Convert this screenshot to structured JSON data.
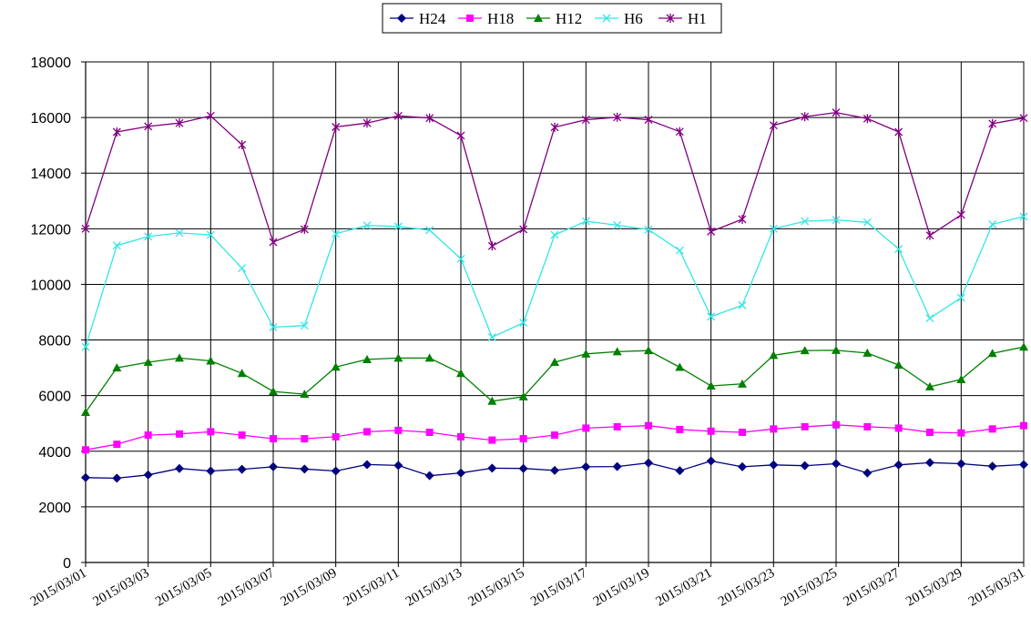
{
  "chart_data": {
    "type": "line",
    "title": "",
    "xlabel": "",
    "ylabel": "",
    "ylim": [
      0,
      18000
    ],
    "yticks": [
      0,
      2000,
      4000,
      6000,
      8000,
      10000,
      12000,
      14000,
      16000,
      18000
    ],
    "grid": true,
    "legend_position": "top-center",
    "categories": [
      "2015/03/01",
      "2015/03/02",
      "2015/03/03",
      "2015/03/04",
      "2015/03/05",
      "2015/03/06",
      "2015/03/07",
      "2015/03/08",
      "2015/03/09",
      "2015/03/10",
      "2015/03/11",
      "2015/03/12",
      "2015/03/13",
      "2015/03/14",
      "2015/03/15",
      "2015/03/16",
      "2015/03/17",
      "2015/03/18",
      "2015/03/19",
      "2015/03/20",
      "2015/03/21",
      "2015/03/22",
      "2015/03/23",
      "2015/03/24",
      "2015/03/25",
      "2015/03/26",
      "2015/03/27",
      "2015/03/28",
      "2015/03/29",
      "2015/03/30",
      "2015/03/31"
    ],
    "x_tick_labels": [
      "2015/03/01",
      "2015/03/03",
      "2015/03/05",
      "2015/03/07",
      "2015/03/09",
      "2015/03/11",
      "2015/03/13",
      "2015/03/15",
      "2015/03/17",
      "2015/03/19",
      "2015/03/21",
      "2015/03/23",
      "2015/03/25",
      "2015/03/27",
      "2015/03/29",
      "2015/03/31"
    ],
    "series": [
      {
        "name": "H24",
        "color": "#000080",
        "marker": "diamond",
        "values": [
          3050,
          3030,
          3150,
          3380,
          3290,
          3350,
          3440,
          3360,
          3290,
          3520,
          3490,
          3120,
          3220,
          3390,
          3380,
          3310,
          3440,
          3450,
          3580,
          3300,
          3650,
          3440,
          3510,
          3480,
          3550,
          3220,
          3510,
          3590,
          3550,
          3460,
          3520
        ]
      },
      {
        "name": "H18",
        "color": "#ff00ff",
        "marker": "square",
        "values": [
          4050,
          4250,
          4580,
          4620,
          4700,
          4580,
          4450,
          4450,
          4520,
          4700,
          4750,
          4680,
          4520,
          4400,
          4450,
          4580,
          4830,
          4880,
          4920,
          4780,
          4720,
          4680,
          4800,
          4880,
          4950,
          4880,
          4830,
          4680,
          4660,
          4800,
          4920
        ]
      },
      {
        "name": "H12",
        "color": "#008000",
        "marker": "triangle",
        "values": [
          5400,
          7000,
          7200,
          7350,
          7250,
          6800,
          6150,
          6050,
          7030,
          7300,
          7350,
          7350,
          6800,
          5800,
          5960,
          7200,
          7500,
          7580,
          7620,
          7020,
          6350,
          6420,
          7450,
          7620,
          7630,
          7530,
          7100,
          6320,
          6580,
          7520,
          7750
        ]
      },
      {
        "name": "H6",
        "color": "#33e6e6",
        "marker": "x",
        "values": [
          7750,
          11400,
          11720,
          11850,
          11780,
          10580,
          8460,
          8520,
          11820,
          12120,
          12080,
          11950,
          10920,
          8100,
          8620,
          11780,
          12270,
          12130,
          11970,
          11220,
          8840,
          9250,
          12000,
          12270,
          12320,
          12230,
          11270,
          8780,
          9520,
          12160,
          12440
        ]
      },
      {
        "name": "H1",
        "color": "#800080",
        "marker": "star",
        "values": [
          12000,
          15480,
          15680,
          15800,
          16060,
          15020,
          11520,
          11980,
          15660,
          15800,
          16060,
          15980,
          15350,
          11380,
          11980,
          15650,
          15920,
          16010,
          15920,
          15490,
          11900,
          12340,
          15720,
          16030,
          16180,
          15960,
          15480,
          11760,
          12500,
          15780,
          15980
        ]
      }
    ]
  }
}
